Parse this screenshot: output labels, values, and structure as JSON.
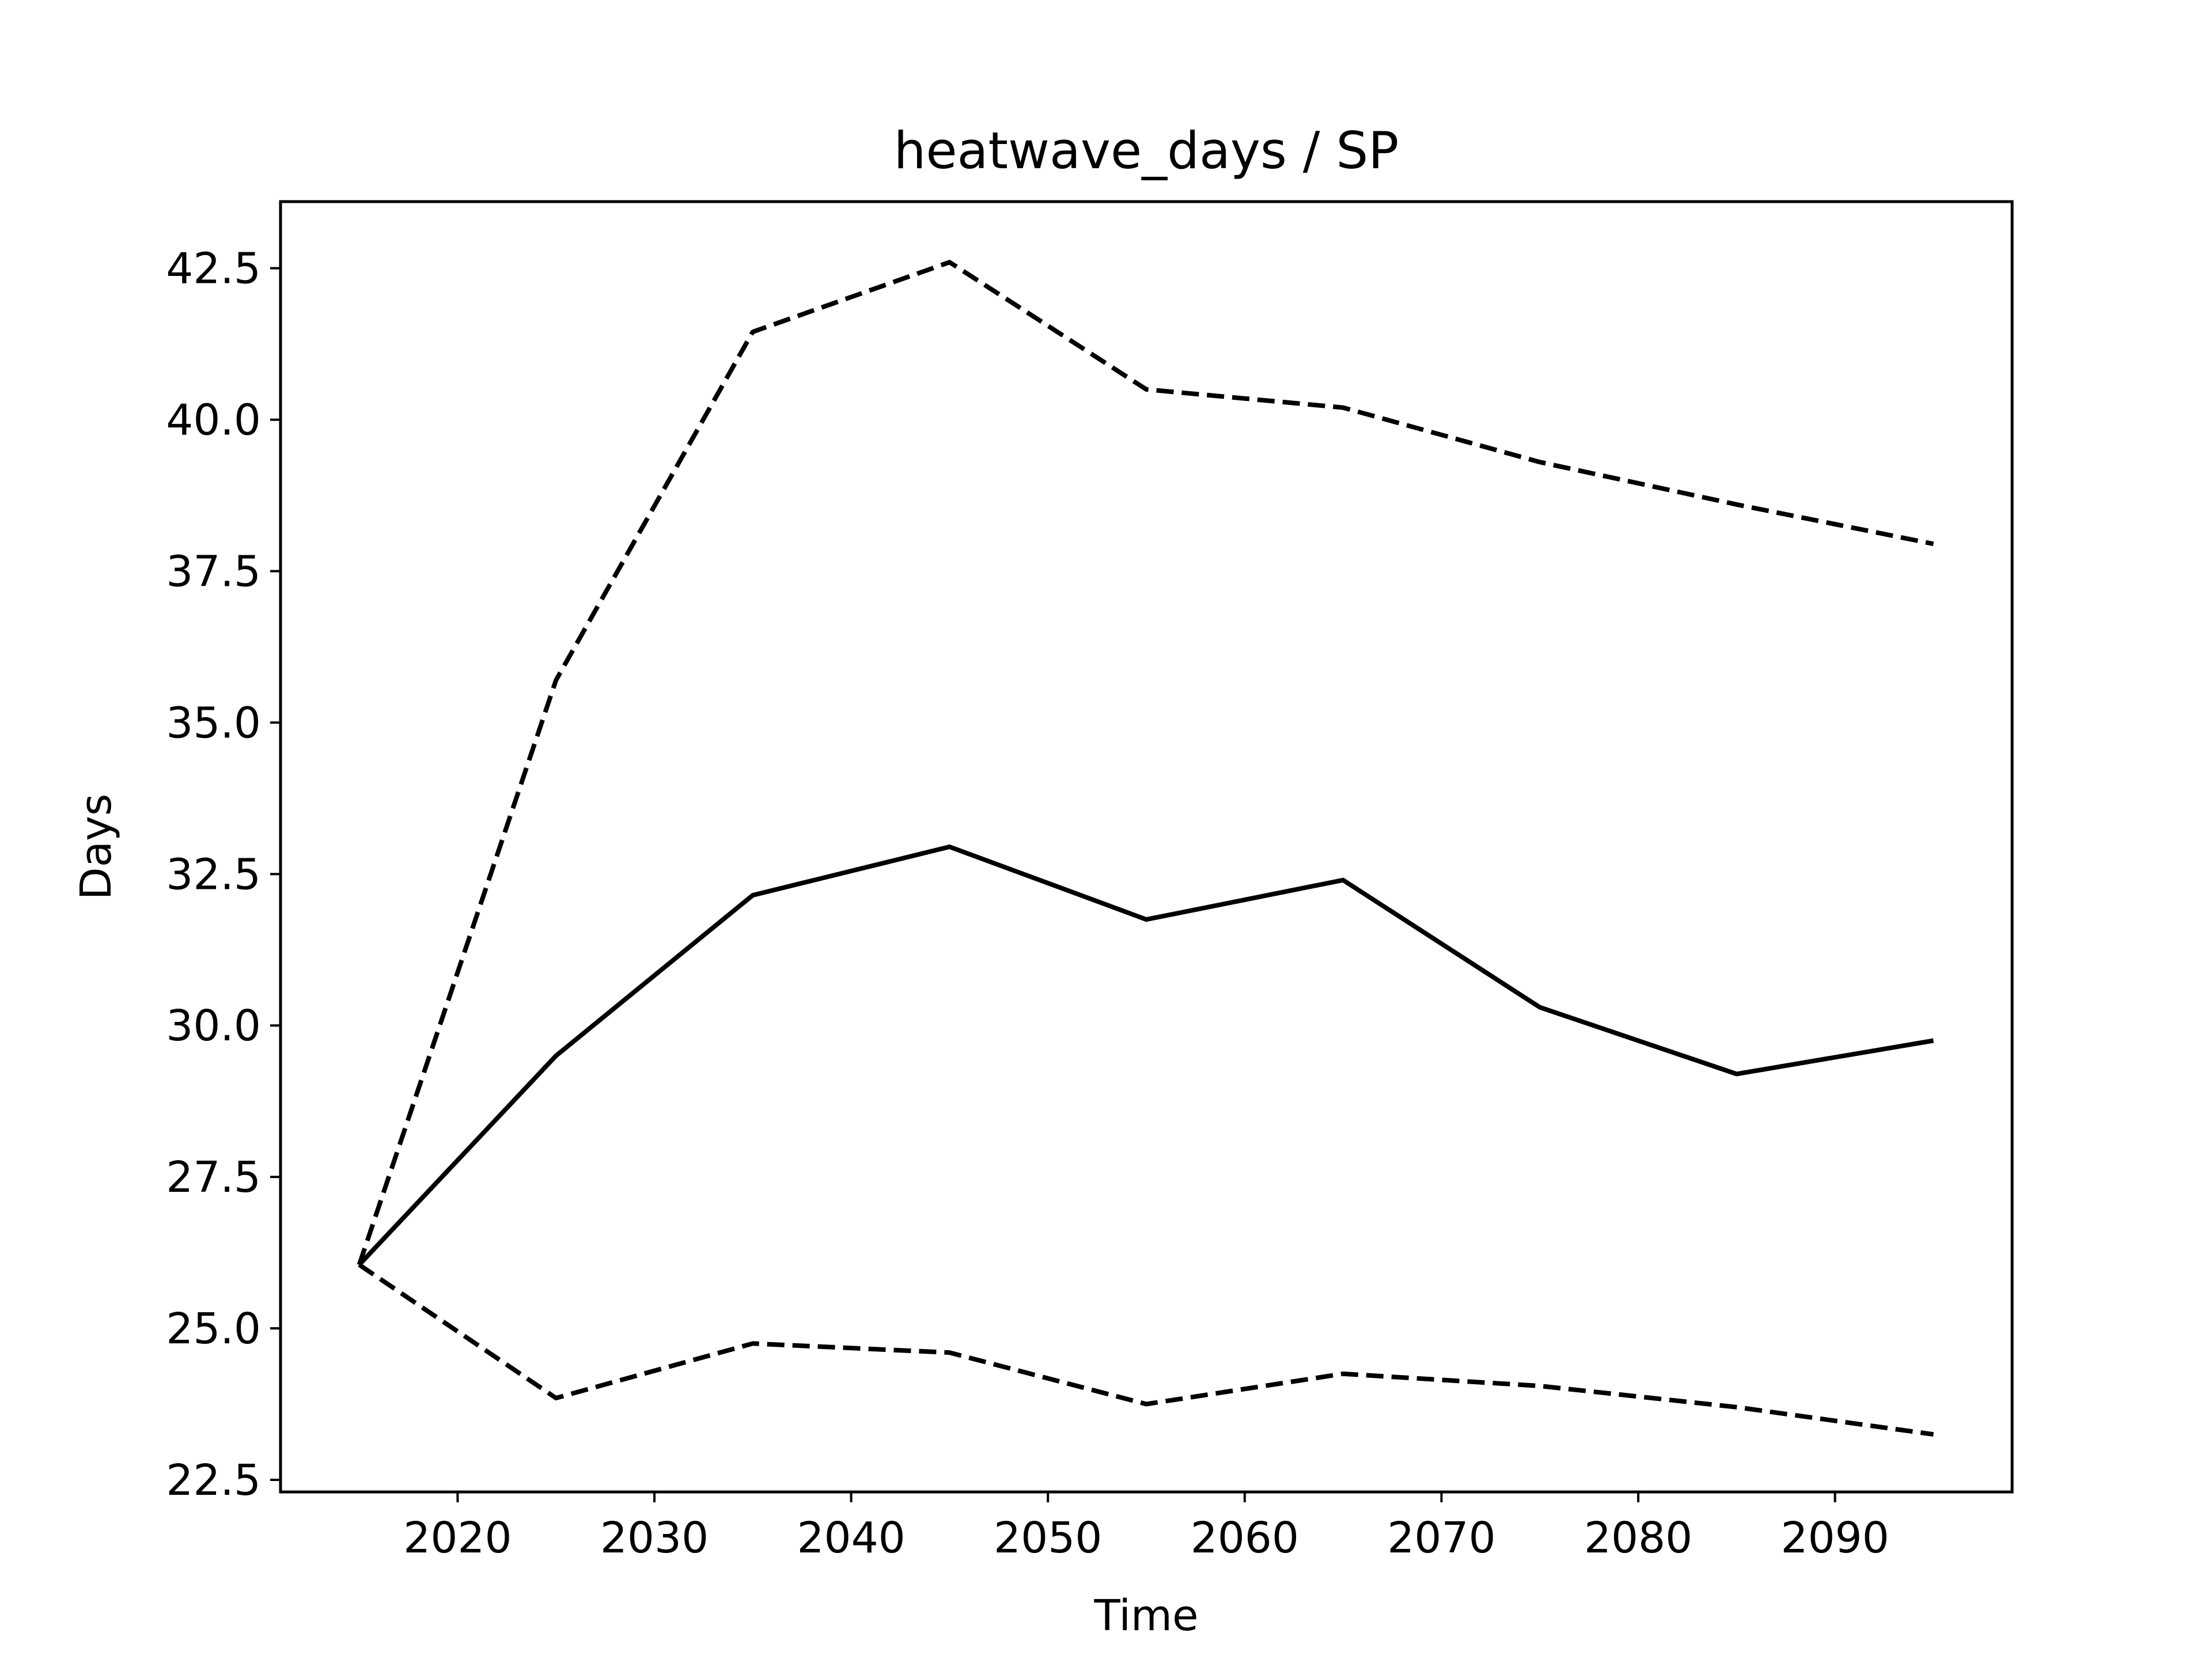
{
  "chart_data": {
    "type": "line",
    "title": "heatwave_days / SP",
    "xlabel": "Time",
    "ylabel": "Days",
    "xlim": [
      2011,
      2099
    ],
    "ylim": [
      22.3,
      43.6
    ],
    "xticks": [
      2020,
      2030,
      2040,
      2050,
      2060,
      2070,
      2080,
      2090
    ],
    "xtick_labels": [
      "2020",
      "2030",
      "2040",
      "2050",
      "2060",
      "2070",
      "2080",
      "2090"
    ],
    "yticks": [
      22.5,
      25.0,
      27.5,
      30.0,
      32.5,
      35.0,
      37.5,
      40.0,
      42.5
    ],
    "ytick_labels": [
      "22.5",
      "25.0",
      "27.5",
      "30.0",
      "32.5",
      "35.0",
      "37.5",
      "40.0",
      "42.5"
    ],
    "grid": false,
    "legend": false,
    "x": [
      2015,
      2025,
      2035,
      2045,
      2055,
      2065,
      2075,
      2085,
      2095
    ],
    "series": [
      {
        "style": "solid",
        "color": "#000000",
        "values": [
          26.05,
          29.5,
          32.15,
          32.95,
          31.75,
          32.4,
          30.3,
          29.2,
          29.75
        ]
      },
      {
        "style": "dashed",
        "color": "#000000",
        "values": [
          26.05,
          35.7,
          41.45,
          42.6,
          40.5,
          40.2,
          39.3,
          38.6,
          37.95
        ]
      },
      {
        "style": "dashed",
        "color": "#000000",
        "values": [
          26.05,
          23.85,
          24.75,
          24.6,
          23.75,
          24.25,
          24.05,
          23.7,
          23.25
        ]
      }
    ]
  }
}
